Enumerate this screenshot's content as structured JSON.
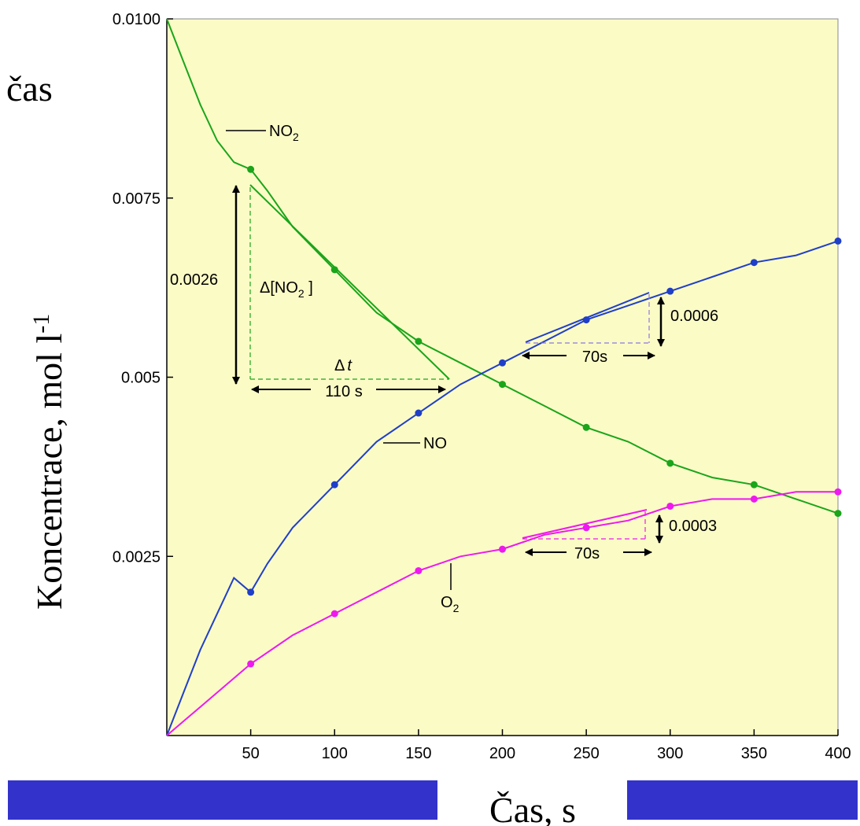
{
  "colors": {
    "plot_background": "#fbfbc6",
    "no2": "#1aa51a",
    "no": "#1f3fc8",
    "o2": "#ee19ee",
    "bottom_bar": "#3333cc"
  },
  "chart_data": {
    "type": "line",
    "xlabel": "Čas, s",
    "ylabel": "Koncentrace, mol l-1",
    "ylabel_main": "Koncentrace, mol l",
    "ylabel_sup": "-1",
    "corner_word": "čas",
    "xlim": [
      0,
      400
    ],
    "ylim": [
      0,
      0.01
    ],
    "x_ticks": [
      {
        "value": 50,
        "label": "50"
      },
      {
        "value": 100,
        "label": "100"
      },
      {
        "value": 150,
        "label": "150"
      },
      {
        "value": 200,
        "label": "200"
      },
      {
        "value": 250,
        "label": "250"
      },
      {
        "value": 300,
        "label": "300"
      },
      {
        "value": 350,
        "label": "350"
      },
      {
        "value": 400,
        "label": "400"
      }
    ],
    "y_ticks": [
      {
        "value": 0.0025,
        "label": "0.0025"
      },
      {
        "value": 0.005,
        "label": "0.005"
      },
      {
        "value": 0.0075,
        "label": "0.0075"
      },
      {
        "value": 0.01,
        "label": "0.0100"
      }
    ],
    "series": [
      {
        "key": "no2",
        "name": "NO2",
        "label_main": "NO",
        "label_sub": "2",
        "curve": [
          [
            0,
            0.01
          ],
          [
            10,
            0.0094
          ],
          [
            20,
            0.0088
          ],
          [
            30,
            0.0083
          ],
          [
            40,
            0.008
          ],
          [
            50,
            0.0079
          ],
          [
            60,
            0.0076
          ],
          [
            75,
            0.0071
          ],
          [
            100,
            0.0065
          ],
          [
            125,
            0.0059
          ],
          [
            150,
            0.0055
          ],
          [
            175,
            0.0052
          ],
          [
            200,
            0.0049
          ],
          [
            225,
            0.0046
          ],
          [
            250,
            0.0043
          ],
          [
            275,
            0.0041
          ],
          [
            300,
            0.0038
          ],
          [
            325,
            0.0036
          ],
          [
            350,
            0.0035
          ],
          [
            375,
            0.0033
          ],
          [
            400,
            0.0031
          ]
        ],
        "points": [
          [
            50,
            0.0079
          ],
          [
            100,
            0.0065
          ],
          [
            150,
            0.0055
          ],
          [
            200,
            0.0049
          ],
          [
            250,
            0.0043
          ],
          [
            300,
            0.0038
          ],
          [
            350,
            0.0035
          ],
          [
            400,
            0.0031
          ]
        ]
      },
      {
        "key": "no",
        "name": "NO",
        "label_main": "NO",
        "label_sub": "",
        "curve": [
          [
            0,
            0
          ],
          [
            10,
            0.0006
          ],
          [
            20,
            0.0012
          ],
          [
            30,
            0.0017
          ],
          [
            40,
            0.0022
          ],
          [
            50,
            0.002
          ],
          [
            50,
            0.002
          ],
          [
            60,
            0.0024
          ],
          [
            75,
            0.0029
          ],
          [
            100,
            0.0035
          ],
          [
            125,
            0.0041
          ],
          [
            150,
            0.0045
          ],
          [
            175,
            0.0049
          ],
          [
            200,
            0.0052
          ],
          [
            225,
            0.0055
          ],
          [
            250,
            0.0058
          ],
          [
            275,
            0.006
          ],
          [
            300,
            0.0062
          ],
          [
            325,
            0.0064
          ],
          [
            350,
            0.0066
          ],
          [
            375,
            0.0067
          ],
          [
            400,
            0.0069
          ]
        ],
        "points": [
          [
            50,
            0.002
          ],
          [
            100,
            0.0035
          ],
          [
            150,
            0.0045
          ],
          [
            200,
            0.0052
          ],
          [
            250,
            0.0058
          ],
          [
            300,
            0.0062
          ],
          [
            350,
            0.0066
          ],
          [
            400,
            0.0069
          ]
        ]
      },
      {
        "key": "o2",
        "name": "O2",
        "label_main": "O",
        "label_sub": "2",
        "curve": [
          [
            0,
            0
          ],
          [
            10,
            0.0002
          ],
          [
            25,
            0.0005
          ],
          [
            50,
            0.001
          ],
          [
            75,
            0.0014
          ],
          [
            100,
            0.0017
          ],
          [
            125,
            0.002
          ],
          [
            150,
            0.0023
          ],
          [
            175,
            0.0025
          ],
          [
            200,
            0.0026
          ],
          [
            225,
            0.0028
          ],
          [
            250,
            0.0029
          ],
          [
            275,
            0.003
          ],
          [
            300,
            0.0032
          ],
          [
            325,
            0.0033
          ],
          [
            350,
            0.0033
          ],
          [
            375,
            0.0034
          ],
          [
            400,
            0.0034
          ]
        ],
        "points": [
          [
            50,
            0.001
          ],
          [
            100,
            0.0017
          ],
          [
            150,
            0.0023
          ],
          [
            200,
            0.0026
          ],
          [
            250,
            0.0029
          ],
          [
            300,
            0.0032
          ],
          [
            350,
            0.0033
          ],
          [
            400,
            0.0034
          ]
        ]
      }
    ],
    "annotations": {
      "no2_tangent": {
        "delta_y_label": "0.0026",
        "delta_species_main": "Δ[NO",
        "delta_species_sub": "2",
        "delta_species_end": " ]",
        "delta_t_symbol": "Δ",
        "delta_t_var": "t",
        "interval_label": "110 s"
      },
      "no_tangent": {
        "delta_y_label": "0.0006",
        "interval_label": "70s"
      },
      "o2_tangent": {
        "delta_y_label": "0.0003",
        "interval_label": "70s"
      }
    }
  }
}
